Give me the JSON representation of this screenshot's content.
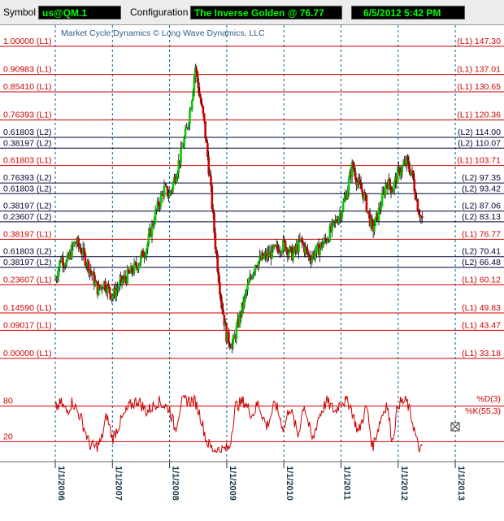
{
  "toolbar": {
    "symbol_label": "Symbol",
    "symbol_value": "us@QM.1",
    "configuration_label": "Configuration",
    "configuration_value": "The Inverse Golden @ 76.77",
    "datetime_value": "6/5/2012 5:42 PM"
  },
  "chart": {
    "watermark": "Market Cycle Dynamics © Long Wave Dynamics, LLC",
    "colors": {
      "level_l1": "#cc0000",
      "level_l2": "#000033",
      "bull_candle": "#00cc00",
      "bear_candle": "#cc0000",
      "oscillator": "#cc0000",
      "year_gridline": "#006699"
    }
  },
  "chart_data": [
    {
      "type": "candlestick",
      "title": "",
      "y_axis": "price",
      "ylim": [
        33.18,
        147.3
      ],
      "x_tick_labels": [
        "1/1/2006",
        "1/1/2007",
        "1/1/2008",
        "1/1/2009",
        "1/1/2010",
        "1/1/2011",
        "1/1/2012",
        "1/1/2013"
      ],
      "levels": [
        {
          "left_label": "1.00000 (L1)",
          "right_label": "(L1) 147.30",
          "ratio": 1.0,
          "value": 147.3,
          "series": "L1"
        },
        {
          "left_label": "0.90983 (L1)",
          "right_label": "(L1) 137.01",
          "ratio": 0.90983,
          "value": 137.01,
          "series": "L1"
        },
        {
          "left_label": "0.85410 (L1)",
          "right_label": "(L1) 130.65",
          "ratio": 0.8541,
          "value": 130.65,
          "series": "L1"
        },
        {
          "left_label": "0.76393 (L1)",
          "right_label": "(L1) 120.36",
          "ratio": 0.76393,
          "value": 120.36,
          "series": "L1"
        },
        {
          "left_label": "0.61803 (L2)",
          "right_label": "(L2) 114.00",
          "ratio": 0.61803,
          "value": 114.0,
          "series": "L2"
        },
        {
          "left_label": "0.38197 (L2)",
          "right_label": "(L2) 110.07",
          "ratio": 0.38197,
          "value": 110.07,
          "series": "L2"
        },
        {
          "left_label": "0.61803 (L1)",
          "right_label": "(L1) 103.71",
          "ratio": 0.61803,
          "value": 103.71,
          "series": "L1"
        },
        {
          "left_label": "0.76393 (L2)",
          "right_label": "(L2) 97.35",
          "ratio": 0.76393,
          "value": 97.35,
          "series": "L2"
        },
        {
          "left_label": "0.61803 (L2)",
          "right_label": "(L2) 93.42",
          "ratio": 0.61803,
          "value": 93.42,
          "series": "L2"
        },
        {
          "left_label": "0.38197 (L2)",
          "right_label": "(L2) 87.06",
          "ratio": 0.38197,
          "value": 87.06,
          "series": "L2"
        },
        {
          "left_label": "0.23607 (L2)",
          "right_label": "(L2) 83.13",
          "ratio": 0.23607,
          "value": 83.13,
          "series": "L2"
        },
        {
          "left_label": "0.38197 (L1)",
          "right_label": "(L1) 76.77",
          "ratio": 0.38197,
          "value": 76.77,
          "series": "L1"
        },
        {
          "left_label": "0.61803 (L2)",
          "right_label": "(L2) 70.41",
          "ratio": 0.61803,
          "value": 70.41,
          "series": "L2"
        },
        {
          "left_label": "0.38197 (L2)",
          "right_label": "(L2) 66.48",
          "ratio": 0.38197,
          "value": 66.48,
          "series": "L2"
        },
        {
          "left_label": "0.23607 (L1)",
          "right_label": "(L1) 60.12",
          "ratio": 0.23607,
          "value": 60.12,
          "series": "L1"
        },
        {
          "left_label": "0.14590 (L1)",
          "right_label": "(L1) 49.83",
          "ratio": 0.1459,
          "value": 49.83,
          "series": "L1"
        },
        {
          "left_label": "0.09017 (L1)",
          "right_label": "(L1) 43.47",
          "ratio": 0.09017,
          "value": 43.47,
          "series": "L1"
        },
        {
          "left_label": "0.00000 (L1)",
          "right_label": "(L1) 33.18",
          "ratio": 0.0,
          "value": 33.18,
          "series": "L1"
        }
      ],
      "price_path": [
        [
          2006.0,
          62
        ],
        [
          2006.1,
          70
        ],
        [
          2006.2,
          68
        ],
        [
          2006.35,
          76
        ],
        [
          2006.45,
          73
        ],
        [
          2006.6,
          66
        ],
        [
          2006.75,
          58
        ],
        [
          2006.85,
          61
        ],
        [
          2007.0,
          56
        ],
        [
          2007.15,
          61
        ],
        [
          2007.3,
          64
        ],
        [
          2007.45,
          68
        ],
        [
          2007.6,
          74
        ],
        [
          2007.75,
          86
        ],
        [
          2007.9,
          95
        ],
        [
          2008.0,
          93
        ],
        [
          2008.1,
          100
        ],
        [
          2008.2,
          108
        ],
        [
          2008.3,
          117
        ],
        [
          2008.38,
          127
        ],
        [
          2008.45,
          140
        ],
        [
          2008.52,
          130
        ],
        [
          2008.6,
          120
        ],
        [
          2008.7,
          100
        ],
        [
          2008.8,
          75
        ],
        [
          2008.9,
          55
        ],
        [
          2009.0,
          41
        ],
        [
          2009.1,
          38
        ],
        [
          2009.2,
          46
        ],
        [
          2009.35,
          58
        ],
        [
          2009.5,
          68
        ],
        [
          2009.65,
          70
        ],
        [
          2009.8,
          72
        ],
        [
          2010.0,
          75
        ],
        [
          2010.15,
          71
        ],
        [
          2010.3,
          76
        ],
        [
          2010.45,
          70
        ],
        [
          2010.6,
          73
        ],
        [
          2010.75,
          77
        ],
        [
          2010.9,
          83
        ],
        [
          2011.0,
          87
        ],
        [
          2011.1,
          94
        ],
        [
          2011.2,
          104
        ],
        [
          2011.3,
          97
        ],
        [
          2011.4,
          93
        ],
        [
          2011.55,
          80
        ],
        [
          2011.65,
          86
        ],
        [
          2011.8,
          98
        ],
        [
          2011.9,
          95
        ],
        [
          2012.0,
          101
        ],
        [
          2012.15,
          105
        ],
        [
          2012.25,
          100
        ],
        [
          2012.35,
          88
        ],
        [
          2012.42,
          84
        ]
      ],
      "last_price": 76.77
    },
    {
      "type": "line",
      "title": "",
      "series": [
        {
          "name": "%D(3)"
        },
        {
          "name": "%K(55,3)"
        }
      ],
      "reference_lines": [
        80,
        20
      ],
      "ylim": [
        0,
        100
      ],
      "values_approx": [
        [
          2006.0,
          75
        ],
        [
          2006.1,
          85
        ],
        [
          2006.2,
          70
        ],
        [
          2006.3,
          88
        ],
        [
          2006.45,
          60
        ],
        [
          2006.6,
          15
        ],
        [
          2006.7,
          10
        ],
        [
          2006.8,
          20
        ],
        [
          2006.9,
          65
        ],
        [
          2007.0,
          25
        ],
        [
          2007.15,
          55
        ],
        [
          2007.3,
          80
        ],
        [
          2007.45,
          90
        ],
        [
          2007.6,
          70
        ],
        [
          2007.8,
          88
        ],
        [
          2008.0,
          75
        ],
        [
          2008.1,
          40
        ],
        [
          2008.2,
          85
        ],
        [
          2008.3,
          90
        ],
        [
          2008.45,
          88
        ],
        [
          2008.55,
          60
        ],
        [
          2008.65,
          20
        ],
        [
          2008.75,
          8
        ],
        [
          2008.9,
          5
        ],
        [
          2009.05,
          10
        ],
        [
          2009.15,
          80
        ],
        [
          2009.3,
          88
        ],
        [
          2009.45,
          65
        ],
        [
          2009.55,
          85
        ],
        [
          2009.7,
          45
        ],
        [
          2009.85,
          85
        ],
        [
          2010.0,
          40
        ],
        [
          2010.1,
          80
        ],
        [
          2010.25,
          30
        ],
        [
          2010.35,
          85
        ],
        [
          2010.5,
          20
        ],
        [
          2010.6,
          60
        ],
        [
          2010.75,
          88
        ],
        [
          2010.9,
          70
        ],
        [
          2011.0,
          90
        ],
        [
          2011.15,
          85
        ],
        [
          2011.3,
          35
        ],
        [
          2011.45,
          80
        ],
        [
          2011.55,
          10
        ],
        [
          2011.7,
          60
        ],
        [
          2011.8,
          85
        ],
        [
          2011.9,
          20
        ],
        [
          2012.0,
          85
        ],
        [
          2012.15,
          88
        ],
        [
          2012.25,
          55
        ],
        [
          2012.35,
          10
        ],
        [
          2012.42,
          5
        ]
      ]
    }
  ]
}
